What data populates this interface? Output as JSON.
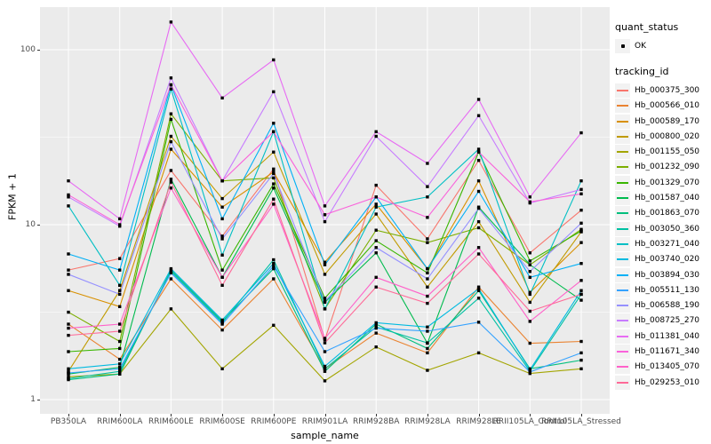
{
  "chart_data": {
    "type": "line",
    "title": "",
    "xlabel": "sample_name",
    "ylabel": "FPKM + 1",
    "y_scale": "log10",
    "ylim": [
      1,
      200
    ],
    "y_ticks": [
      {
        "value": 100,
        "label": "100"
      },
      {
        "value": 10,
        "label": "10"
      },
      {
        "value": 1,
        "label": "1"
      }
    ],
    "y_minor_ticks": [
      31.62,
      3.162
    ],
    "grid": true,
    "legend_position": "right",
    "categories": [
      "PB350LA",
      "RRIM600LA",
      "RRIM600LE",
      "RRIM600SE",
      "RRIM600PE",
      "RRIM901LA",
      "RRIM928BA",
      "RRIM928LA",
      "RRIM928LE",
      "RRII105LA_Control",
      "RRII105LA_Stressed"
    ],
    "series": [
      {
        "name": "Hb_000375_300",
        "color": "#F8766D",
        "quant_status": "OK",
        "values": [
          5.5,
          6.4,
          20.4,
          8.6,
          20.8,
          2.2,
          16.8,
          8.3,
          23.3,
          6.9,
          12.1
        ]
      },
      {
        "name": "Hb_000566_010",
        "color": "#EA8331",
        "quant_status": "OK",
        "values": [
          2.7,
          1.7,
          4.9,
          2.5,
          4.9,
          1.5,
          2.4,
          1.85,
          4.4,
          2.1,
          2.15
        ]
      },
      {
        "name": "Hb_000589_170",
        "color": "#D89000",
        "quant_status": "OK",
        "values": [
          4.2,
          3.4,
          27,
          12.6,
          20,
          6.1,
          13.1,
          5.6,
          17.8,
          4.1,
          7.9
        ]
      },
      {
        "name": "Hb_000800_020",
        "color": "#C09B00",
        "quant_status": "OK",
        "values": [
          1.45,
          4.2,
          32,
          14.1,
          26,
          5.2,
          11.5,
          4.4,
          10.4,
          3.6,
          9.1
        ]
      },
      {
        "name": "Hb_001155_050",
        "color": "#A3A500",
        "quant_status": "OK",
        "values": [
          1.35,
          1.4,
          3.3,
          1.5,
          2.66,
          1.28,
          2.0,
          1.47,
          1.85,
          1.41,
          1.5
        ]
      },
      {
        "name": "Hb_001232_090",
        "color": "#7CAE00",
        "quant_status": "OK",
        "values": [
          3.16,
          2.15,
          43,
          17.8,
          18.5,
          3.3,
          9.3,
          7.9,
          9.6,
          5.9,
          9.4
        ]
      },
      {
        "name": "Hb_001329_070",
        "color": "#39B600",
        "quant_status": "OK",
        "values": [
          1.88,
          1.96,
          40,
          5.5,
          17.1,
          3.8,
          8.1,
          5.3,
          26,
          6.2,
          9.2
        ]
      },
      {
        "name": "Hb_001587_040",
        "color": "#00BB4E",
        "quant_status": "OK",
        "values": [
          1.4,
          1.53,
          18.2,
          5.0,
          16.2,
          3.6,
          6.9,
          2.1,
          12.6,
          5.9,
          3.7
        ]
      },
      {
        "name": "Hb_001863_070",
        "color": "#00BF7D",
        "quant_status": "OK",
        "values": [
          1.3,
          1.4,
          5.5,
          2.8,
          5.6,
          1.45,
          2.7,
          1.96,
          4.2,
          1.5,
          1.68
        ]
      },
      {
        "name": "Hb_003050_360",
        "color": "#00C1A3",
        "quant_status": "OK",
        "values": [
          1.32,
          1.45,
          5.4,
          2.75,
          6.3,
          1.5,
          2.6,
          2.11,
          3.8,
          1.45,
          4.0
        ]
      },
      {
        "name": "Hb_003271_040",
        "color": "#00BFC4",
        "quant_status": "OK",
        "values": [
          12.8,
          4.5,
          59.6,
          6.7,
          34,
          3.3,
          12.6,
          14.4,
          27,
          4.0,
          17.8
        ]
      },
      {
        "name": "Hb_003740_020",
        "color": "#00BAE0",
        "quant_status": "OK",
        "values": [
          1.5,
          1.6,
          5.6,
          2.85,
          6.0,
          1.55,
          2.75,
          2.6,
          4.3,
          1.48,
          4.2
        ]
      },
      {
        "name": "Hb_003894_030",
        "color": "#00B0F6",
        "quant_status": "OK",
        "values": [
          6.8,
          5.5,
          63,
          10.8,
          38,
          5.9,
          14.4,
          5.6,
          15.5,
          5.0,
          6.0
        ]
      },
      {
        "name": "Hb_005511_130",
        "color": "#35A2FF",
        "quant_status": "OK",
        "values": [
          1.42,
          1.5,
          5.3,
          2.7,
          5.8,
          1.88,
          2.56,
          2.46,
          2.77,
          1.44,
          1.85
        ]
      },
      {
        "name": "Hb_006588_190",
        "color": "#9590FF",
        "quant_status": "OK",
        "values": [
          5.2,
          4.0,
          29.8,
          8.3,
          19.6,
          3.65,
          7.4,
          4.9,
          12.4,
          5.4,
          10.2
        ]
      },
      {
        "name": "Hb_008725_270",
        "color": "#C77CFF",
        "quant_status": "OK",
        "values": [
          14.4,
          9.8,
          69,
          17.8,
          57.5,
          10.4,
          32,
          16.5,
          42,
          13.3,
          15.9
        ]
      },
      {
        "name": "Hb_011381_040",
        "color": "#E76BF3",
        "quant_status": "OK",
        "values": [
          17.8,
          10.8,
          144,
          53,
          87.5,
          12.8,
          34,
          22.4,
          52,
          14.4,
          33.5
        ]
      },
      {
        "name": "Hb_011671_340",
        "color": "#FA62DB",
        "quant_status": "OK",
        "values": [
          14.8,
          10.0,
          63,
          17.8,
          34,
          11.4,
          14.4,
          11.0,
          26,
          13.5,
          15.0
        ]
      },
      {
        "name": "Hb_013405_070",
        "color": "#FF61C9",
        "quant_status": "OK",
        "values": [
          2.56,
          2.7,
          16.2,
          5.0,
          13.1,
          2.24,
          5.0,
          3.9,
          7.4,
          2.8,
          4.8
        ]
      },
      {
        "name": "Hb_029253_010",
        "color": "#FF6A98",
        "quant_status": "OK",
        "values": [
          2.33,
          2.46,
          17.5,
          4.5,
          14,
          2.11,
          4.4,
          3.55,
          6.8,
          3.2,
          4.0
        ]
      }
    ]
  },
  "legend": {
    "quant_status_title": "quant_status",
    "quant_status_items": [
      {
        "label": "OK",
        "marker": "point"
      }
    ],
    "tracking_title": "tracking_id"
  },
  "colors": {
    "panel_bg": "#EBEBEB",
    "grid_major": "#FFFFFF",
    "grid_minor": "#FFFFFF",
    "point_color": "#000000",
    "legend_key_bg": "#F2F2F2",
    "axis_text": "#4D4D4D",
    "text": "#000000"
  }
}
